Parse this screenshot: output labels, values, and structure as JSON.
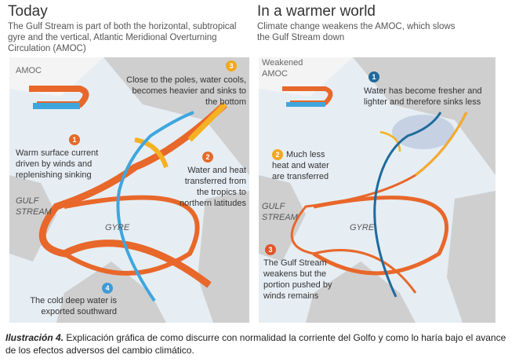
{
  "left": {
    "title": "Today",
    "subtitle": "The Gulf Stream is part of both the horizontal, subtropical gyre and the vertical, Atlantic Meridional Overturning Circulation (AMOC)",
    "amoc_label": "AMOC",
    "gulf_stream": "GULF STREAM",
    "gyre": "GYRE",
    "steps": [
      {
        "n": "1",
        "text": "Warm surface current driven by winds and replenishing sinking",
        "color": "#e46a2a"
      },
      {
        "n": "2",
        "text": "Water and heat transferred from the tropics to northern latitudes",
        "color": "#e46a2a"
      },
      {
        "n": "3",
        "text": "Close to the poles, water cools, becomes heavier and sinks to the bottom",
        "color": "#f2a81d"
      },
      {
        "n": "4",
        "text": "The cold deep water is exported southward",
        "color": "#3f9ad6"
      }
    ]
  },
  "right": {
    "title": "In a warmer world",
    "subtitle": "Climate change weakens the AMOC, which slows the Gulf Stream down",
    "amoc_label": "Weakened AMOC",
    "gulf_stream": "GULF STREAM",
    "gyre": "GYRE",
    "steps": [
      {
        "n": "1",
        "text": "Water has become fresher and lighter and therefore sinks less",
        "color": "#1f6a9c"
      },
      {
        "n": "2",
        "text": "Much less heat and water are transferred",
        "color": "#f2a81d"
      },
      {
        "n": "3",
        "text": "The Gulf Stream weakens but the portion pushed by winds remains",
        "color": "#e0552a"
      }
    ]
  },
  "caption": {
    "label": "Ilustración 4.",
    "text": " Explicación gráfica de como discurre con normalidad la corriente del Golfo y como lo haría bajo el avance de los efectos adversos del cambio climático."
  },
  "colors": {
    "warm": "#e8672a",
    "yellow": "#f5b122",
    "cold": "#3fa6dd",
    "deep": "#1f6a9c",
    "ocean": "#e6eef4",
    "land": "#c9c9c9"
  }
}
